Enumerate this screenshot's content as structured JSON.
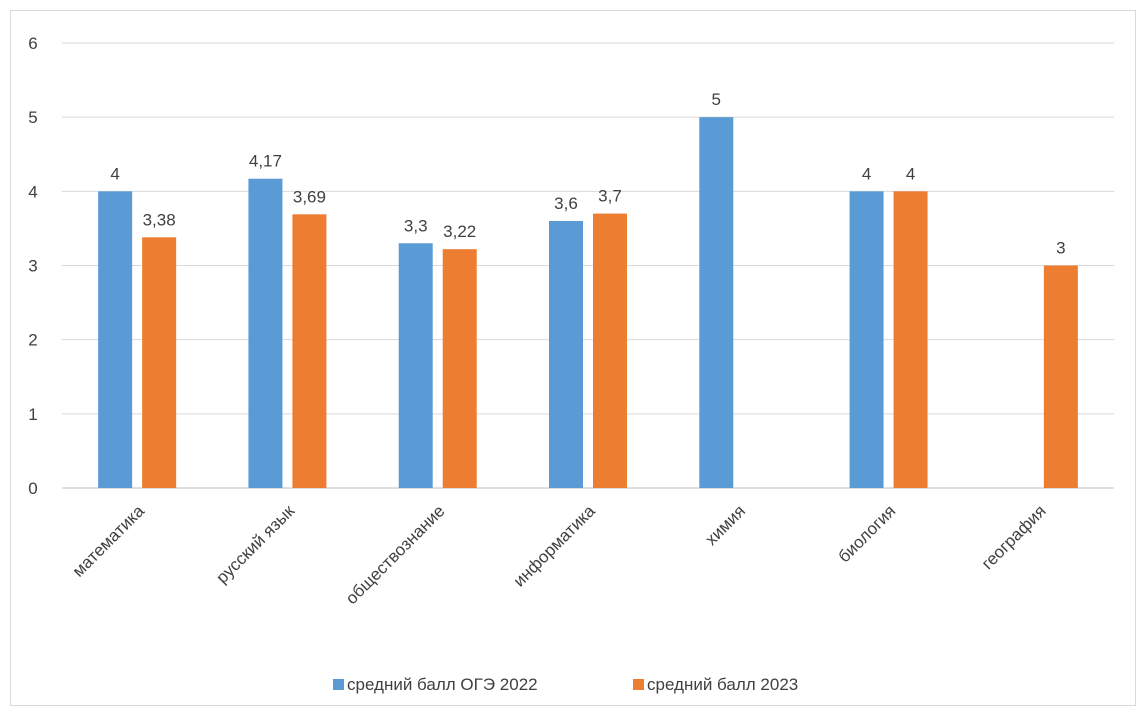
{
  "chart_data": {
    "type": "bar",
    "title": "",
    "xlabel": "",
    "ylabel": "",
    "ylim": [
      0,
      6
    ],
    "y_ticks": [
      0,
      1,
      2,
      3,
      4,
      5,
      6
    ],
    "grid": true,
    "legend_position": "bottom",
    "categories": [
      "математика",
      "русский язык",
      "обществознание",
      "информатика",
      "химия",
      "биология",
      "география"
    ],
    "series": [
      {
        "name": "средний балл ОГЭ 2022",
        "color": "#5b9bd5",
        "values": [
          4,
          4.17,
          3.3,
          3.6,
          5,
          4,
          null
        ],
        "labels": [
          "4",
          "4,17",
          "3,3",
          "3,6",
          "5",
          "4",
          ""
        ]
      },
      {
        "name": "средний балл 2023",
        "color": "#ed7d31",
        "values": [
          3.38,
          3.69,
          3.22,
          3.7,
          null,
          4,
          3
        ],
        "labels": [
          "3,38",
          "3,69",
          "3,22",
          "3,7",
          "",
          "4",
          "3"
        ]
      }
    ]
  }
}
